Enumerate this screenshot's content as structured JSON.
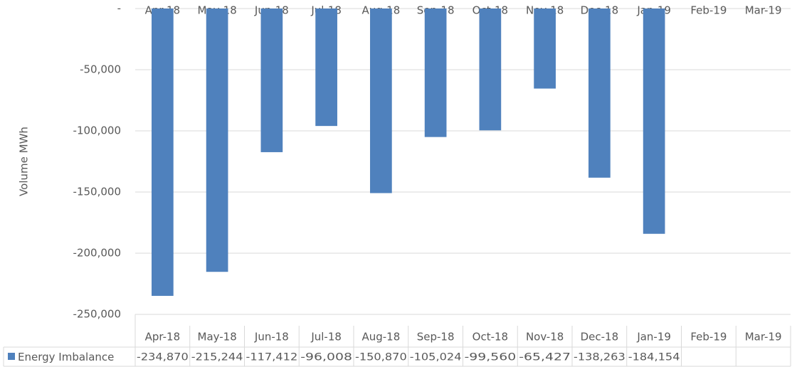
{
  "chart_data": {
    "type": "bar",
    "y_label": "Volume MWh",
    "categories": [
      "Apr-18",
      "May-18",
      "Jun-18",
      "Jul-18",
      "Aug-18",
      "Sep-18",
      "Oct-18",
      "Nov-18",
      "Dec-18",
      "Jan-19",
      "Feb-19",
      "Mar-19"
    ],
    "series": [
      {
        "name": "Energy Imbalance",
        "color": "#4f81bd",
        "values": [
          -234870,
          -215244,
          -117412,
          -96008,
          -150870,
          -105024,
          -99560,
          -65427,
          -138263,
          -184154,
          null,
          null
        ],
        "value_labels": [
          "-234,870",
          "-215,244",
          "-117,412",
          "-96,008",
          "-150,870",
          "-105,024",
          "-99,560",
          "-65,427",
          "-138,263",
          "-184,154",
          null,
          null
        ]
      }
    ],
    "ylim": [
      -250000,
      0
    ],
    "yticks": [
      {
        "value": 0,
        "label": "-"
      },
      {
        "value": -50000,
        "label": "-50,000"
      },
      {
        "value": -100000,
        "label": "-100,000"
      },
      {
        "value": -150000,
        "label": "-150,000"
      },
      {
        "value": -200000,
        "label": "-200,000"
      },
      {
        "value": -250000,
        "label": "-250,000"
      }
    ],
    "grid": true,
    "data_table": true
  }
}
